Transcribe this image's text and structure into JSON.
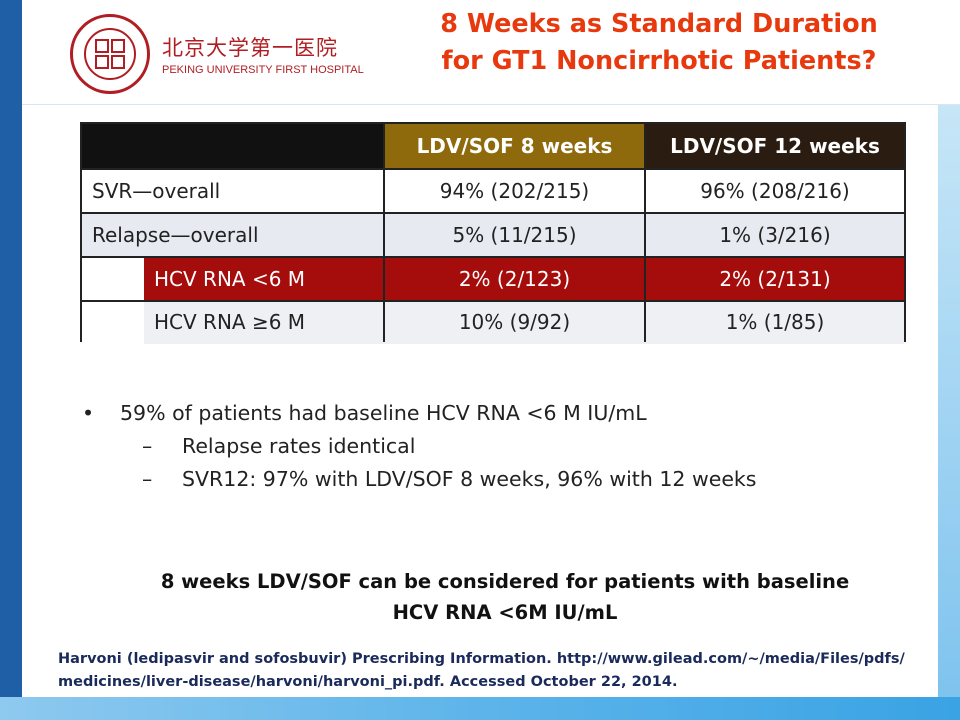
{
  "header": {
    "logo_cn": "北京大学第一医院",
    "logo_en": "PEKING UNIVERSITY FIRST HOSPITAL",
    "title_line1": "8 Weeks as Standard Duration",
    "title_line2": "for GT1 Noncirrhotic Patients?",
    "title_color": "#e8380d"
  },
  "table": {
    "columns": [
      "",
      "LDV/SOF 8 weeks",
      "LDV/SOF 12 weeks"
    ],
    "rows": [
      {
        "label": "SVR—overall",
        "a": "94% (202/215)",
        "b": "96% (208/216)"
      },
      {
        "label": "Relapse—overall",
        "a": "5% (11/215)",
        "b": "1% (3/216)"
      },
      {
        "label": "HCV RNA <6 M",
        "a": "2% (2/123)",
        "b": "2% (2/131)"
      },
      {
        "label": "HCV RNA ≥6 M",
        "a": "10% (9/92)",
        "b": "1% (1/85)"
      }
    ],
    "highlight_color": "#a50d0d"
  },
  "bullets": {
    "main": "59% of patients had baseline HCV RNA <6 M IU/mL",
    "subs": [
      "Relapse rates identical",
      "SVR12: 97% with LDV/SOF 8 weeks, 96% with 12 weeks"
    ],
    "bullet_char": "•",
    "dash_char": "–"
  },
  "conclusion": {
    "line1": "8 weeks LDV/SOF can be considered for patients with baseline",
    "line2": "HCV RNA <6M IU/mL"
  },
  "reference": {
    "line1": "Harvoni (ledipasvir and sofosbuvir) Prescribing Information. http://www.gilead.com/~/media/Files/pdfs/",
    "line2": "medicines/liver-disease/harvoni/harvoni_pi.pdf. Accessed October 22, 2014."
  }
}
